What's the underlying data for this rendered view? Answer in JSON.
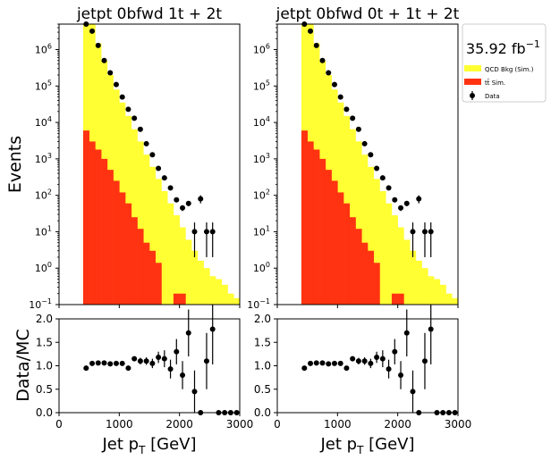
{
  "y_main_label": "Events",
  "y_ratio_label": "Data/MC",
  "x_label": "Jet $p_T$ [GeV]",
  "x_label_text": {
    "base": "Jet p",
    "sub": "T",
    "tail": " [GeV]"
  },
  "legend": {
    "lumi": "35.92 fb",
    "lumi_sup": "−1",
    "entries": [
      {
        "label": "QCD Bkg (Sim.)",
        "color": "#ffff33",
        "kind": "box"
      },
      {
        "label": "tt̄ Sim.",
        "color": "#ff3311",
        "kind": "box"
      },
      {
        "label": "Data",
        "color": "#000000",
        "kind": "marker"
      }
    ]
  },
  "colors": {
    "qcd": "#ffff33",
    "ttbar": "#ff3311",
    "data": "#000000"
  },
  "chart_data": [
    {
      "type": "bar",
      "title": "jetpt  0bfwd 1t + 2t",
      "x_bin_edges": [
        0,
        100,
        200,
        300,
        400,
        500,
        600,
        700,
        800,
        900,
        1000,
        1100,
        1200,
        1300,
        1400,
        1500,
        1600,
        1700,
        1800,
        1900,
        2000,
        2100,
        2200,
        2300,
        2400,
        2500,
        2600,
        2700,
        2800,
        2900,
        3000
      ],
      "xlim": [
        0,
        3000
      ],
      "ylim": [
        0.1,
        5000000
      ],
      "yscale": "log",
      "x_ticks": [
        0,
        1000,
        2000,
        3000
      ],
      "y_ticks": [
        {
          "value": 0.1,
          "label": "10",
          "exp": "−1"
        },
        {
          "value": 1,
          "label": "10",
          "exp": "0"
        },
        {
          "value": 10,
          "label": "10",
          "exp": "1"
        },
        {
          "value": 100,
          "label": "10",
          "exp": "2"
        },
        {
          "value": 1000,
          "label": "10",
          "exp": "3"
        },
        {
          "value": 10000,
          "label": "10",
          "exp": "4"
        },
        {
          "value": 100000,
          "label": "10",
          "exp": "5"
        },
        {
          "value": 1000000,
          "label": "10",
          "exp": "6"
        }
      ],
      "series": [
        {
          "name": "QCD Bkg (Sim.)",
          "kind": "hist",
          "values": [
            0,
            0,
            0,
            0,
            5000000,
            5000000,
            1500000,
            500000,
            200000,
            80000,
            35000,
            15000,
            6500,
            3000,
            1300,
            600,
            280,
            130,
            60,
            28,
            13,
            6,
            3,
            1.6,
            1.0,
            0.6,
            0.5,
            0.35,
            0.2,
            0.15
          ]
        },
        {
          "name": "tt̄ Sim.",
          "kind": "hist",
          "values": [
            0,
            0,
            0,
            0,
            6000,
            3000,
            1800,
            1000,
            500,
            250,
            120,
            60,
            25,
            12,
            5,
            3,
            1.4,
            0,
            0,
            0.2,
            0.2,
            0,
            0,
            0,
            0,
            0,
            0,
            0,
            0,
            0
          ]
        },
        {
          "name": "Data",
          "kind": "errorbar",
          "x": [
            450,
            550,
            650,
            750,
            850,
            950,
            1050,
            1150,
            1250,
            1350,
            1450,
            1550,
            1650,
            1750,
            1850,
            1950,
            2050,
            2150,
            2250,
            2350,
            2450,
            2550
          ],
          "y": [
            5000000,
            3200000,
            1300000,
            500000,
            230000,
            110000,
            50000,
            23000,
            13000,
            6500,
            2600,
            1300,
            550,
            300,
            160,
            75,
            45,
            60,
            10,
            80,
            10,
            10
          ],
          "yerr": [
            0,
            0,
            0,
            0,
            0,
            0,
            0,
            0,
            0,
            0,
            0,
            0,
            0,
            0,
            0,
            0,
            8,
            10,
            8,
            20,
            8,
            8
          ]
        }
      ],
      "ratio": {
        "ylim": [
          0,
          2.0
        ],
        "y_ticks": [
          "0.0",
          "0.5",
          "1.0",
          "1.5",
          "2.0"
        ],
        "x": [
          450,
          550,
          650,
          750,
          850,
          950,
          1050,
          1150,
          1250,
          1350,
          1450,
          1550,
          1650,
          1750,
          1850,
          1950,
          2050,
          2150,
          2250,
          2350,
          2450,
          2550,
          2650,
          2750,
          2850,
          2950
        ],
        "y": [
          0.95,
          1.05,
          1.06,
          1.06,
          1.04,
          1.05,
          1.05,
          0.95,
          1.15,
          1.1,
          1.1,
          1.05,
          1.18,
          1.15,
          0.93,
          1.3,
          0.8,
          1.7,
          0.45,
          0,
          1.1,
          1.78,
          0,
          0,
          0,
          0
        ],
        "yerr": [
          0.01,
          0.01,
          0.01,
          0.02,
          0.02,
          0.02,
          0.03,
          0.04,
          0.05,
          0.07,
          0.08,
          0.1,
          0.12,
          0.18,
          0.2,
          0.27,
          0.3,
          0.5,
          0.45,
          0,
          0.6,
          0.75,
          0,
          0,
          0,
          0
        ]
      }
    },
    {
      "type": "bar",
      "title": "jetpt  0bfwd 0t + 1t + 2t",
      "x_bin_edges": [
        0,
        100,
        200,
        300,
        400,
        500,
        600,
        700,
        800,
        900,
        1000,
        1100,
        1200,
        1300,
        1400,
        1500,
        1600,
        1700,
        1800,
        1900,
        2000,
        2100,
        2200,
        2300,
        2400,
        2500,
        2600,
        2700,
        2800,
        2900,
        3000
      ],
      "xlim": [
        0,
        3000
      ],
      "ylim": [
        0.1,
        5000000
      ],
      "yscale": "log",
      "x_ticks": [
        0,
        1000,
        2000,
        3000
      ],
      "y_ticks": [
        {
          "value": 0.1,
          "label": "10",
          "exp": "−1"
        },
        {
          "value": 1,
          "label": "10",
          "exp": "0"
        },
        {
          "value": 10,
          "label": "10",
          "exp": "1"
        },
        {
          "value": 100,
          "label": "10",
          "exp": "2"
        },
        {
          "value": 1000,
          "label": "10",
          "exp": "3"
        },
        {
          "value": 10000,
          "label": "10",
          "exp": "4"
        },
        {
          "value": 100000,
          "label": "10",
          "exp": "5"
        },
        {
          "value": 1000000,
          "label": "10",
          "exp": "6"
        }
      ],
      "series": [
        {
          "name": "QCD Bkg (Sim.)",
          "kind": "hist",
          "values": [
            0,
            0,
            0,
            0,
            5000000,
            5000000,
            1500000,
            500000,
            200000,
            80000,
            35000,
            15000,
            6500,
            3000,
            1300,
            600,
            280,
            130,
            60,
            28,
            13,
            6,
            3,
            1.6,
            1.0,
            0.6,
            0.5,
            0.35,
            0.2,
            0.15
          ]
        },
        {
          "name": "tt̄ Sim.",
          "kind": "hist",
          "values": [
            0,
            0,
            0,
            0,
            6000,
            3000,
            1800,
            1000,
            500,
            250,
            120,
            60,
            25,
            12,
            5,
            3,
            1.4,
            0,
            0,
            0.2,
            0.2,
            0,
            0,
            0,
            0,
            0,
            0,
            0,
            0,
            0
          ]
        },
        {
          "name": "Data",
          "kind": "errorbar",
          "x": [
            450,
            550,
            650,
            750,
            850,
            950,
            1050,
            1150,
            1250,
            1350,
            1450,
            1550,
            1650,
            1750,
            1850,
            1950,
            2050,
            2150,
            2250,
            2350,
            2450,
            2550
          ],
          "y": [
            5000000,
            3200000,
            1300000,
            500000,
            230000,
            110000,
            50000,
            23000,
            13000,
            6500,
            2600,
            1300,
            550,
            300,
            160,
            75,
            45,
            60,
            10,
            80,
            10,
            10
          ],
          "yerr": [
            0,
            0,
            0,
            0,
            0,
            0,
            0,
            0,
            0,
            0,
            0,
            0,
            0,
            0,
            0,
            0,
            8,
            10,
            8,
            20,
            8,
            8
          ]
        }
      ],
      "ratio": {
        "ylim": [
          0,
          2.0
        ],
        "y_ticks": [
          "0.0",
          "0.5",
          "1.0",
          "1.5",
          "2.0"
        ],
        "x": [
          450,
          550,
          650,
          750,
          850,
          950,
          1050,
          1150,
          1250,
          1350,
          1450,
          1550,
          1650,
          1750,
          1850,
          1950,
          2050,
          2150,
          2250,
          2350,
          2450,
          2550,
          2650,
          2750,
          2850,
          2950
        ],
        "y": [
          0.95,
          1.05,
          1.06,
          1.06,
          1.04,
          1.05,
          1.05,
          0.95,
          1.15,
          1.1,
          1.1,
          1.05,
          1.18,
          1.15,
          0.93,
          1.3,
          0.8,
          1.7,
          0.45,
          0,
          1.1,
          1.78,
          0,
          0,
          0,
          0
        ],
        "yerr": [
          0.01,
          0.01,
          0.01,
          0.02,
          0.02,
          0.02,
          0.03,
          0.04,
          0.05,
          0.07,
          0.08,
          0.1,
          0.12,
          0.18,
          0.2,
          0.27,
          0.3,
          0.5,
          0.45,
          0,
          0.6,
          0.75,
          0,
          0,
          0,
          0
        ]
      }
    }
  ]
}
